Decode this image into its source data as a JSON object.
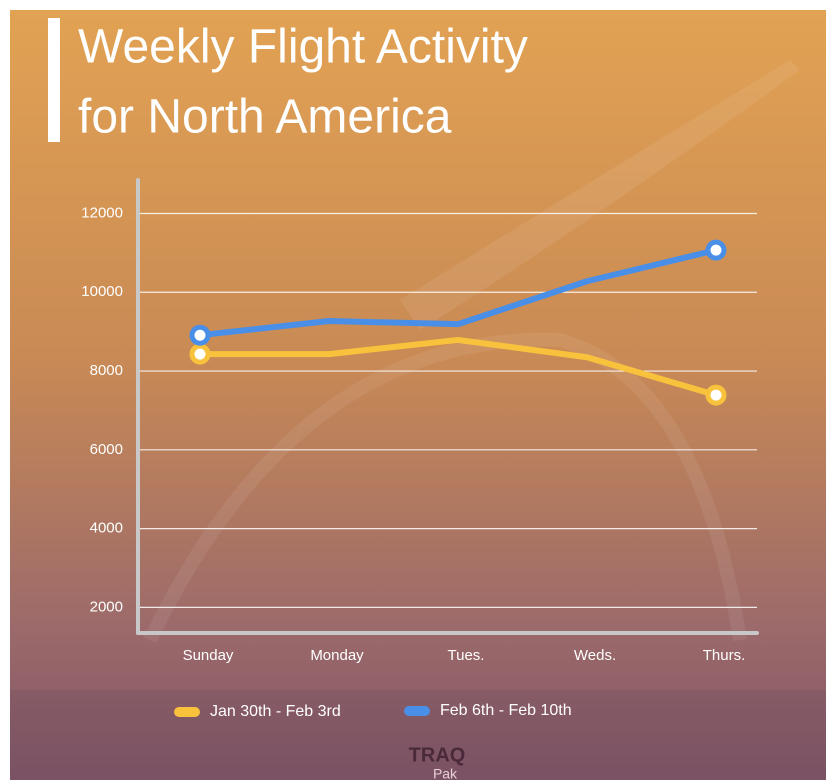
{
  "chart_data": {
    "type": "line",
    "title": [
      "Weekly Flight Activity",
      "for North America"
    ],
    "categories": [
      "Sunday",
      "Monday",
      "Tues.",
      "Weds.",
      "Thurs."
    ],
    "series": [
      {
        "name": "Jan 30th - Feb 3rd",
        "color": "#f9c23c",
        "values": [
          8430,
          8430,
          8790,
          8350,
          7390
        ]
      },
      {
        "name": "Feb 6th - Feb 10th",
        "color": "#4a8fe7",
        "values": [
          8910,
          9270,
          9190,
          10280,
          11070
        ]
      }
    ],
    "ylim": [
      1350,
      12850
    ],
    "yticks": [
      2000,
      4000,
      6000,
      8000,
      10000,
      12000
    ],
    "grid": true,
    "legend": "bottom",
    "brand": [
      "TRAQ",
      "Pak"
    ]
  }
}
